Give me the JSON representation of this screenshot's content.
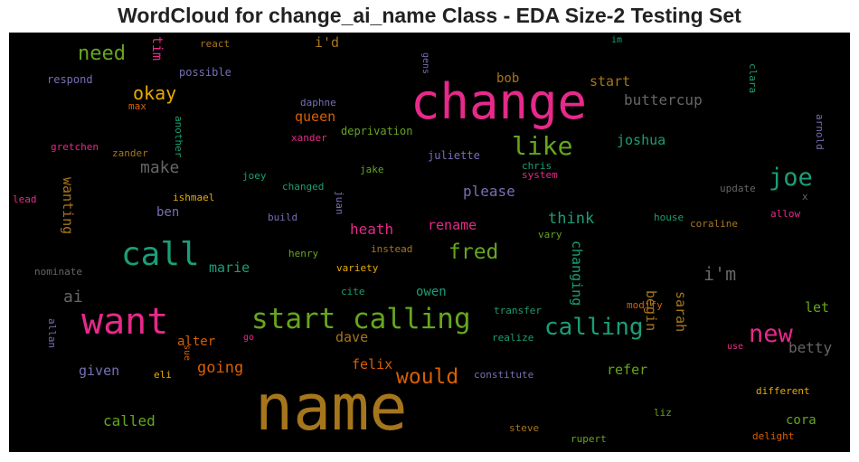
{
  "chart_data": {
    "type": "wordcloud",
    "title": "WordCloud for change_ai_name Class - EDA Size-2 Testing Set",
    "background": "#000000",
    "palette": [
      "#e7298a",
      "#a6761d",
      "#1b9e77",
      "#66a61e",
      "#d95f02",
      "#7570b3",
      "#e6ab02",
      "#666666"
    ],
    "words": [
      {
        "text": "name",
        "color": "#a6761d"
      },
      {
        "text": "change",
        "color": "#e7298a"
      },
      {
        "text": "want",
        "color": "#e7298a"
      },
      {
        "text": "start calling",
        "color": "#66a61e"
      },
      {
        "text": "call",
        "color": "#1b9e77"
      },
      {
        "text": "calling",
        "color": "#1b9e77"
      },
      {
        "text": "new",
        "color": "#e7298a"
      },
      {
        "text": "like",
        "color": "#66a61e"
      },
      {
        "text": "joe",
        "color": "#1b9e77"
      },
      {
        "text": "would",
        "color": "#d95f02"
      },
      {
        "text": "fred",
        "color": "#66a61e"
      },
      {
        "text": "need",
        "color": "#66a61e"
      },
      {
        "text": "okay",
        "color": "#e6ab02"
      },
      {
        "text": "i'm",
        "color": "#666666"
      },
      {
        "text": "make",
        "color": "#666666"
      },
      {
        "text": "ai",
        "color": "#666666"
      },
      {
        "text": "going",
        "color": "#d95f02"
      },
      {
        "text": "please",
        "color": "#7570b3"
      },
      {
        "text": "heath",
        "color": "#e7298a"
      },
      {
        "text": "think",
        "color": "#1b9e77"
      },
      {
        "text": "rename",
        "color": "#e7298a"
      },
      {
        "text": "joshua",
        "color": "#1b9e77"
      },
      {
        "text": "buttercup",
        "color": "#666666"
      },
      {
        "text": "queen",
        "color": "#d95f02"
      },
      {
        "text": "marie",
        "color": "#1b9e77"
      },
      {
        "text": "owen",
        "color": "#1b9e77"
      },
      {
        "text": "called",
        "color": "#66a61e"
      },
      {
        "text": "betty",
        "color": "#666666"
      },
      {
        "text": "cora",
        "color": "#66a61e"
      },
      {
        "text": "dave",
        "color": "#a6761d"
      },
      {
        "text": "felix",
        "color": "#d95f02"
      },
      {
        "text": "given",
        "color": "#7570b3"
      },
      {
        "text": "refer",
        "color": "#66a61e"
      },
      {
        "text": "alter",
        "color": "#d95f02"
      },
      {
        "text": "start",
        "color": "#a6761d"
      },
      {
        "text": "bob",
        "color": "#a6761d"
      },
      {
        "text": "i'd",
        "color": "#a6761d"
      },
      {
        "text": "ben",
        "color": "#7570b3"
      },
      {
        "text": "let",
        "color": "#66a61e"
      },
      {
        "text": "wanting",
        "color": "#a6761d"
      },
      {
        "text": "changing",
        "color": "#1b9e77"
      },
      {
        "text": "begin",
        "color": "#a6761d"
      },
      {
        "text": "sarah",
        "color": "#a6761d"
      },
      {
        "text": "tim",
        "color": "#e7298a"
      },
      {
        "text": "react",
        "color": "#a6761d"
      },
      {
        "text": "im",
        "color": "#1b9e77"
      },
      {
        "text": "possible",
        "color": "#7570b3"
      },
      {
        "text": "respond",
        "color": "#7570b3"
      },
      {
        "text": "max",
        "color": "#d95f02"
      },
      {
        "text": "daphne",
        "color": "#7570b3"
      },
      {
        "text": "gretchen",
        "color": "#e7298a"
      },
      {
        "text": "zander",
        "color": "#a6761d"
      },
      {
        "text": "xander",
        "color": "#e7298a"
      },
      {
        "text": "deprivation",
        "color": "#66a61e"
      },
      {
        "text": "juliette",
        "color": "#7570b3"
      },
      {
        "text": "chris",
        "color": "#1b9e77"
      },
      {
        "text": "system",
        "color": "#e7298a"
      },
      {
        "text": "jake",
        "color": "#66a61e"
      },
      {
        "text": "joey",
        "color": "#1b9e77"
      },
      {
        "text": "changed",
        "color": "#1b9e77"
      },
      {
        "text": "ishmael",
        "color": "#e6ab02"
      },
      {
        "text": "lead",
        "color": "#e7298a"
      },
      {
        "text": "update",
        "color": "#666666"
      },
      {
        "text": "x",
        "color": "#666666"
      },
      {
        "text": "allow",
        "color": "#e7298a"
      },
      {
        "text": "house",
        "color": "#1b9e77"
      },
      {
        "text": "coraline",
        "color": "#a6761d"
      },
      {
        "text": "build",
        "color": "#7570b3"
      },
      {
        "text": "henry",
        "color": "#66a61e"
      },
      {
        "text": "instead",
        "color": "#a6761d"
      },
      {
        "text": "vary",
        "color": "#66a61e"
      },
      {
        "text": "nominate",
        "color": "#666666"
      },
      {
        "text": "variety",
        "color": "#e6ab02"
      },
      {
        "text": "cite",
        "color": "#1b9e77"
      },
      {
        "text": "transfer",
        "color": "#1b9e77"
      },
      {
        "text": "modify",
        "color": "#d95f02"
      },
      {
        "text": "go",
        "color": "#e7298a"
      },
      {
        "text": "realize",
        "color": "#1b9e77"
      },
      {
        "text": "use",
        "color": "#e7298a"
      },
      {
        "text": "eli",
        "color": "#e6ab02"
      },
      {
        "text": "constitute",
        "color": "#7570b3"
      },
      {
        "text": "different",
        "color": "#e6ab02"
      },
      {
        "text": "liz",
        "color": "#66a61e"
      },
      {
        "text": "steve",
        "color": "#a6761d"
      },
      {
        "text": "rupert",
        "color": "#66a61e"
      },
      {
        "text": "delight",
        "color": "#d95f02"
      },
      {
        "text": "another",
        "color": "#1b9e77"
      },
      {
        "text": "gens",
        "color": "#7570b3"
      },
      {
        "text": "clara",
        "color": "#1b9e77"
      },
      {
        "text": "arnold",
        "color": "#7570b3"
      },
      {
        "text": "juan",
        "color": "#7570b3"
      },
      {
        "text": "allan",
        "color": "#7570b3"
      },
      {
        "text": "sue",
        "color": "#d95f02"
      }
    ]
  }
}
